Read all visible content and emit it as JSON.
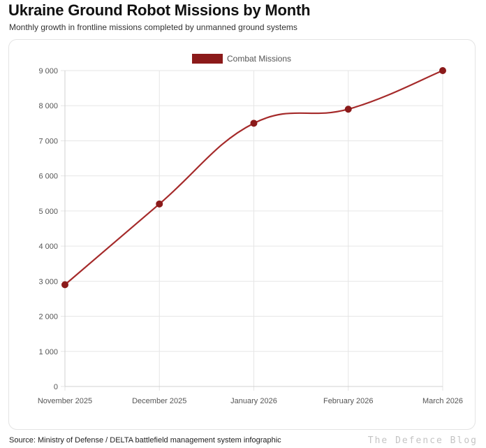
{
  "title": "Ukraine Ground Robot Missions by Month",
  "subtitle": "Monthly growth in frontline missions completed by unmanned ground systems",
  "source": "Source: Ministry of Defense / DELTA battlefield management system infographic",
  "watermark": "The Defence Blog",
  "colors": {
    "series": "#a52a2a",
    "point": "#8b1a1a",
    "grid": "#e6e6e6"
  },
  "chart_data": {
    "type": "line",
    "title": "",
    "xlabel": "",
    "ylabel": "",
    "categories": [
      "November 2025",
      "December 2025",
      "January 2026",
      "February 2026",
      "March 2026"
    ],
    "series": [
      {
        "name": "Combat Missions",
        "values": [
          2900,
          5200,
          7500,
          7900,
          9000
        ]
      }
    ],
    "ylim": [
      0,
      9000
    ],
    "yticks": [
      0,
      1000,
      2000,
      3000,
      4000,
      5000,
      6000,
      7000,
      8000,
      9000
    ],
    "ytick_labels": [
      "0",
      "1 000",
      "2 000",
      "3 000",
      "4 000",
      "5 000",
      "6 000",
      "7 000",
      "8 000",
      "9 000"
    ],
    "grid": true,
    "legend_position": "top-center"
  }
}
